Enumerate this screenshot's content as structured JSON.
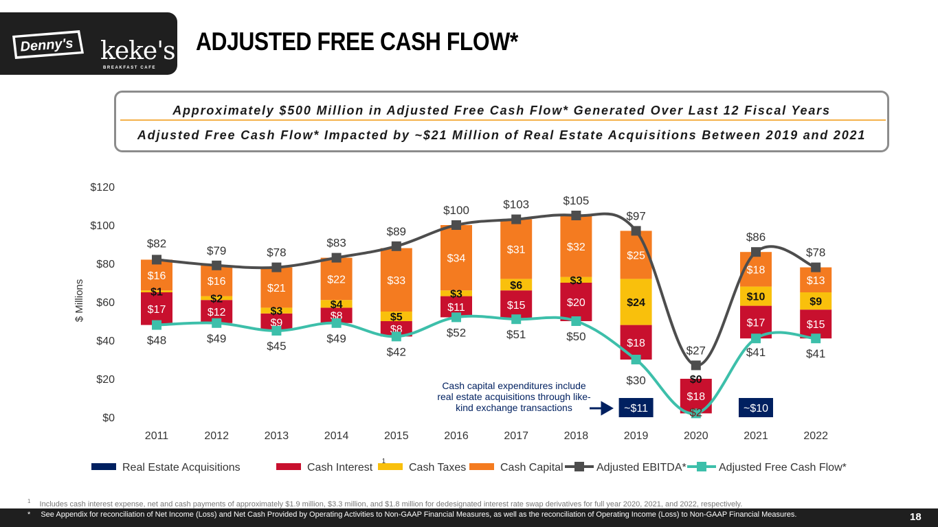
{
  "header": {
    "title": "ADJUSTED FREE CASH FLOW*",
    "brand_1": "Denny's",
    "brand_2_word": "keke's",
    "brand_2_tag": "BREAKFAST CAFE"
  },
  "callout": {
    "line1": "Approximately $500 Million in Adjusted Free Cash Flow* Generated Over Last 12 Fiscal Years",
    "line2": "Adjusted Free Cash Flow* Impacted by ~$21 Million of Real Estate Acquisitions Between 2019 and 2021"
  },
  "chart_data": {
    "type": "bar",
    "stacked": true,
    "ylabel": "$ Millions",
    "ylim": [
      0,
      120
    ],
    "yticks": [
      "$0",
      "$20",
      "$40",
      "$60",
      "$80",
      "$100",
      "$120"
    ],
    "categories": [
      "2011",
      "2012",
      "2013",
      "2014",
      "2015",
      "2016",
      "2017",
      "2018",
      "2019",
      "2020",
      "2021",
      "2022"
    ],
    "series": [
      {
        "name": "Cash Interest",
        "color": "#c8102e",
        "values": [
          17,
          12,
          9,
          8,
          8,
          11,
          15,
          20,
          18,
          18,
          17,
          15
        ],
        "labels": [
          "$17",
          "$12",
          "$9",
          "$8",
          "$8",
          "$11",
          "$15",
          "$20",
          "$18",
          "$18",
          "$17",
          "$15"
        ]
      },
      {
        "name": "Cash Taxes",
        "color": "#f9c00c",
        "values": [
          1,
          2,
          3,
          4,
          5,
          3,
          6,
          3,
          24,
          0,
          10,
          9
        ],
        "labels": [
          "$1",
          "$2",
          "$3",
          "$4",
          "$5",
          "$3",
          "$6",
          "$3",
          "$24",
          "$0",
          "$10",
          "$9"
        ]
      },
      {
        "name": "Cash Capital",
        "color": "#f47b20",
        "values": [
          16,
          16,
          21,
          22,
          33,
          34,
          31,
          32,
          25,
          null,
          18,
          13
        ],
        "labels": [
          "$16",
          "$16",
          "$21",
          "$22",
          "$33",
          "$34",
          "$31",
          "$32",
          "$25",
          null,
          "$18",
          "$13"
        ]
      },
      {
        "name": "Real Estate Acquisitions",
        "color": "#002060",
        "values": [
          null,
          null,
          null,
          null,
          null,
          null,
          null,
          null,
          11,
          null,
          10,
          null
        ],
        "labels": [
          null,
          null,
          null,
          null,
          null,
          null,
          null,
          null,
          "~$11",
          null,
          "~$10",
          null
        ]
      }
    ],
    "lines": [
      {
        "name": "Adjusted EBITDA*",
        "color": "#4d4d4d",
        "values": [
          82,
          79,
          78,
          83,
          89,
          100,
          103,
          105,
          97,
          27,
          86,
          78
        ],
        "labels": [
          "$82",
          "$79",
          "$78",
          "$83",
          "$89",
          "$100",
          "$103",
          "$105",
          "$97",
          "$27",
          "$86",
          "$78"
        ]
      },
      {
        "name": "Adjusted Free Cash Flow*",
        "color": "#3dbfaa",
        "values": [
          48,
          49,
          45,
          49,
          42,
          52,
          51,
          50,
          30,
          2,
          41,
          41
        ],
        "labels": [
          "$48",
          "$49",
          "$45",
          "$49",
          "$42",
          "$52",
          "$51",
          "$50",
          "$30",
          "$2",
          "$41",
          "$41"
        ]
      }
    ],
    "legend": [
      {
        "name": "Real Estate Acquisitions",
        "kind": "bar",
        "color": "#002060"
      },
      {
        "name": "Cash Interest",
        "kind": "bar",
        "color": "#c8102e",
        "superscript": "1"
      },
      {
        "name": "Cash Taxes",
        "kind": "bar",
        "color": "#f9c00c"
      },
      {
        "name": "Cash Capital",
        "kind": "bar",
        "color": "#f47b20"
      },
      {
        "name": "Adjusted EBITDA*",
        "kind": "line",
        "color": "#4d4d4d"
      },
      {
        "name": "Adjusted Free Cash Flow*",
        "kind": "line",
        "color": "#3dbfaa"
      }
    ],
    "annotation": "Cash capital expenditures include real estate acquisitions through like-kind exchange transactions",
    "annotation_lines": [
      "Cash capital expenditures include",
      "real estate acquisitions through like-",
      "kind exchange transactions"
    ]
  },
  "footer": {
    "footnote_1_mark": "1",
    "footnote_1": "Includes cash interest expense, net and cash payments of approximately $1.9 million, $3.3 million, and $1.8 million for dedesignated interest rate swap derivatives for full year 2020, 2021, and 2022, respectively.",
    "footnote_star_mark": "*",
    "footnote_star": "See Appendix for reconciliation of Net Income (Loss) and Net Cash Provided by Operating Activities to Non-GAAP Financial Measures, as well as the reconciliation of Operating Income (Loss) to Non-GAAP Financial Measures.",
    "page_number": "18"
  }
}
